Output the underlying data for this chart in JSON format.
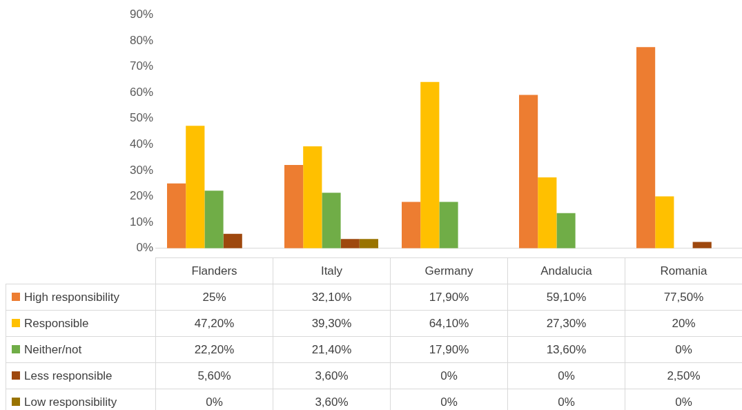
{
  "chart_data": {
    "type": "bar",
    "categories": [
      "Flanders",
      "Italy",
      "Germany",
      "Andalucia",
      "Romania"
    ],
    "series": [
      {
        "name": "High responsibility",
        "color": "#ed7d31",
        "values": [
          25,
          32.1,
          17.9,
          59.1,
          77.5
        ],
        "value_labels": [
          "25%",
          "32,10%",
          "17,90%",
          "59,10%",
          "77,50%"
        ]
      },
      {
        "name": "Responsible",
        "color": "#ffc000",
        "values": [
          47.2,
          39.3,
          64.1,
          27.3,
          20
        ],
        "value_labels": [
          "47,20%",
          "39,30%",
          "64,10%",
          "27,30%",
          "20%"
        ]
      },
      {
        "name": "Neither/not",
        "color": "#70ad47",
        "values": [
          22.2,
          21.4,
          17.9,
          13.6,
          0
        ],
        "value_labels": [
          "22,20%",
          "21,40%",
          "17,90%",
          "13,60%",
          "0%"
        ]
      },
      {
        "name": "Less responsible",
        "color": "#9e480e",
        "values": [
          5.6,
          3.6,
          0,
          0,
          2.5
        ],
        "value_labels": [
          "5,60%",
          "3,60%",
          "0%",
          "0%",
          "2,50%"
        ]
      },
      {
        "name": "Low responsibility",
        "color": "#997300",
        "values": [
          0,
          3.6,
          0,
          0,
          0
        ],
        "value_labels": [
          "0%",
          "3,60%",
          "0%",
          "0%",
          "0%"
        ]
      }
    ],
    "ylim": [
      0,
      90
    ],
    "yticks": [
      {
        "value": 0,
        "label": "0%"
      },
      {
        "value": 10,
        "label": "10%"
      },
      {
        "value": 20,
        "label": "20%"
      },
      {
        "value": 30,
        "label": "30%"
      },
      {
        "value": 40,
        "label": "40%"
      },
      {
        "value": 50,
        "label": "50%"
      },
      {
        "value": 60,
        "label": "60%"
      },
      {
        "value": 70,
        "label": "70%"
      },
      {
        "value": 80,
        "label": "80%"
      },
      {
        "value": 90,
        "label": "90%"
      }
    ],
    "legend": "bottom"
  }
}
